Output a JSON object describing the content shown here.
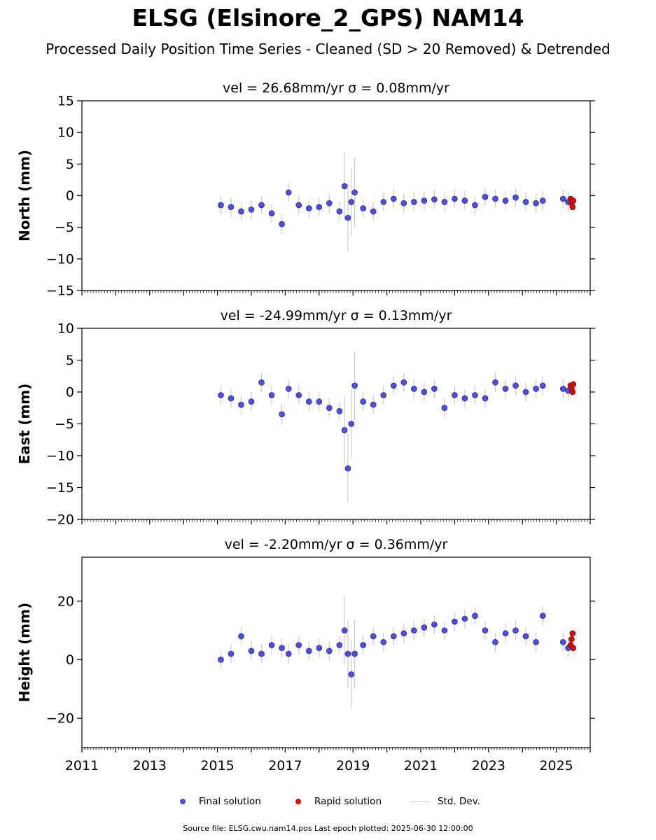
{
  "title": "ELSG (Elsinore_2_GPS) NAM14",
  "subtitle": "Processed Daily Position Time Series - Cleaned (SD > 20 Removed) & Detrended",
  "legend": {
    "final_label": "Final solution",
    "rapid_label": "Rapid solution",
    "std_label": "Std. Dev.",
    "final_color": "#4a4aff",
    "rapid_color": "#ee0000",
    "std_color": "#cccccc"
  },
  "footer": "Source file: ELSG.cwu.nam14.pos  Last epoch plotted: 2025-06-30 12:00:00",
  "chart_data": [
    {
      "type": "scatter",
      "ylabel": "North (mm)",
      "subplot_title": "vel = 26.68mm/yr   σ = 0.08mm/yr",
      "velocity_text": "vel = 26.68mm/yr",
      "sigma_text": "σ = 0.08mm/yr",
      "xlim": [
        2011,
        2026
      ],
      "ylim": [
        -15,
        15
      ],
      "xticks": [
        "2011",
        "2013",
        "2015",
        "2017",
        "2019",
        "2021",
        "2023",
        "2025"
      ],
      "yticks": [
        "15",
        "10",
        "5",
        "0",
        "−5",
        "−10",
        "−15"
      ],
      "ytick_values": [
        15,
        10,
        5,
        0,
        -5,
        -10,
        -15
      ],
      "series": [
        {
          "name": "Final solution",
          "x": [
            2015.1,
            2015.4,
            2015.7,
            2016.0,
            2016.3,
            2016.6,
            2016.9,
            2017.1,
            2017.4,
            2017.7,
            2018.0,
            2018.3,
            2018.6,
            2018.75,
            2018.85,
            2018.95,
            2019.05,
            2019.3,
            2019.6,
            2019.9,
            2020.2,
            2020.5,
            2020.8,
            2021.1,
            2021.4,
            2021.7,
            2022.0,
            2022.3,
            2022.6,
            2022.9,
            2023.2,
            2023.5,
            2023.8,
            2024.1,
            2024.4,
            2024.6,
            2025.2,
            2025.35
          ],
          "y": [
            -1.5,
            -1.8,
            -2.5,
            -2.2,
            -1.5,
            -2.8,
            -4.5,
            0.5,
            -1.5,
            -2.0,
            -1.8,
            -1.2,
            -2.5,
            1.5,
            -3.5,
            -1.0,
            0.5,
            -2.0,
            -2.5,
            -1.0,
            -0.5,
            -1.2,
            -1.0,
            -0.8,
            -0.6,
            -1.0,
            -0.5,
            -0.8,
            -1.5,
            -0.2,
            -0.5,
            -0.8,
            -0.3,
            -1.0,
            -1.2,
            -0.8,
            -0.5,
            -1.0
          ]
        },
        {
          "name": "Rapid solution",
          "x": [
            2025.42,
            2025.45,
            2025.48,
            2025.5
          ],
          "y": [
            -0.5,
            -1.2,
            -1.8,
            -0.8
          ]
        }
      ]
    },
    {
      "type": "scatter",
      "ylabel": "East (mm)",
      "subplot_title": "vel = -24.99mm/yr   σ = 0.13mm/yr",
      "velocity_text": "vel = -24.99mm/yr",
      "sigma_text": "σ = 0.13mm/yr",
      "xlim": [
        2011,
        2026
      ],
      "ylim": [
        -20,
        10
      ],
      "xticks": [
        "2011",
        "2013",
        "2015",
        "2017",
        "2019",
        "2021",
        "2023",
        "2025"
      ],
      "yticks": [
        "10",
        "5",
        "0",
        "−5",
        "−10",
        "−15",
        "−20"
      ],
      "ytick_values": [
        10,
        5,
        0,
        -5,
        -10,
        -15,
        -20
      ],
      "series": [
        {
          "name": "Final solution",
          "x": [
            2015.1,
            2015.4,
            2015.7,
            2016.0,
            2016.3,
            2016.6,
            2016.9,
            2017.1,
            2017.4,
            2017.7,
            2018.0,
            2018.3,
            2018.6,
            2018.75,
            2018.85,
            2018.95,
            2019.05,
            2019.3,
            2019.6,
            2019.9,
            2020.2,
            2020.5,
            2020.8,
            2021.1,
            2021.4,
            2021.7,
            2022.0,
            2022.3,
            2022.6,
            2022.9,
            2023.2,
            2023.5,
            2023.8,
            2024.1,
            2024.4,
            2024.6,
            2025.2,
            2025.35
          ],
          "y": [
            -0.5,
            -1.0,
            -2.0,
            -1.5,
            1.5,
            -0.5,
            -3.5,
            0.5,
            -0.5,
            -1.5,
            -1.5,
            -2.5,
            -3.0,
            -6.0,
            -12.0,
            -5.0,
            1.0,
            -1.5,
            -2.0,
            -0.5,
            1.0,
            1.5,
            0.5,
            0.0,
            0.5,
            -2.5,
            -0.5,
            -1.0,
            -0.5,
            -1.0,
            1.5,
            0.5,
            1.0,
            0.0,
            0.5,
            1.0,
            0.5,
            0.2
          ]
        },
        {
          "name": "Rapid solution",
          "x": [
            2025.42,
            2025.45,
            2025.48,
            2025.5
          ],
          "y": [
            1.0,
            0.5,
            0.0,
            1.2
          ]
        }
      ]
    },
    {
      "type": "scatter",
      "ylabel": "Height (mm)",
      "subplot_title": "vel = -2.20mm/yr   σ = 0.36mm/yr",
      "velocity_text": "vel = -2.20mm/yr",
      "sigma_text": "σ = 0.36mm/yr",
      "xlim": [
        2011,
        2026
      ],
      "ylim": [
        -30,
        35
      ],
      "xticks": [
        "2011",
        "2013",
        "2015",
        "2017",
        "2019",
        "2021",
        "2023",
        "2025"
      ],
      "yticks": [
        "20",
        "0",
        "−20"
      ],
      "ytick_values": [
        20,
        0,
        -20
      ],
      "series": [
        {
          "name": "Final solution",
          "x": [
            2015.1,
            2015.4,
            2015.7,
            2016.0,
            2016.3,
            2016.6,
            2016.9,
            2017.1,
            2017.4,
            2017.7,
            2018.0,
            2018.3,
            2018.6,
            2018.75,
            2018.85,
            2018.95,
            2019.05,
            2019.3,
            2019.6,
            2019.9,
            2020.2,
            2020.5,
            2020.8,
            2021.1,
            2021.4,
            2021.7,
            2022.0,
            2022.3,
            2022.6,
            2022.9,
            2023.2,
            2023.5,
            2023.8,
            2024.1,
            2024.4,
            2024.6,
            2025.2,
            2025.35
          ],
          "y": [
            0.0,
            2.0,
            8.0,
            3.0,
            2.0,
            5.0,
            4.0,
            2.0,
            5.0,
            3.0,
            4.0,
            3.0,
            5.0,
            10.0,
            2.0,
            -5.0,
            2.0,
            5.0,
            8.0,
            6.0,
            8.0,
            9.0,
            10.0,
            11.0,
            12.0,
            10.0,
            13.0,
            14.0,
            15.0,
            10.0,
            6.0,
            9.0,
            10.0,
            8.0,
            6.0,
            15.0,
            6.0,
            4.0
          ]
        },
        {
          "name": "Rapid solution",
          "x": [
            2025.42,
            2025.45,
            2025.48,
            2025.5
          ],
          "y": [
            5.0,
            7.0,
            9.0,
            4.0
          ]
        }
      ]
    }
  ]
}
